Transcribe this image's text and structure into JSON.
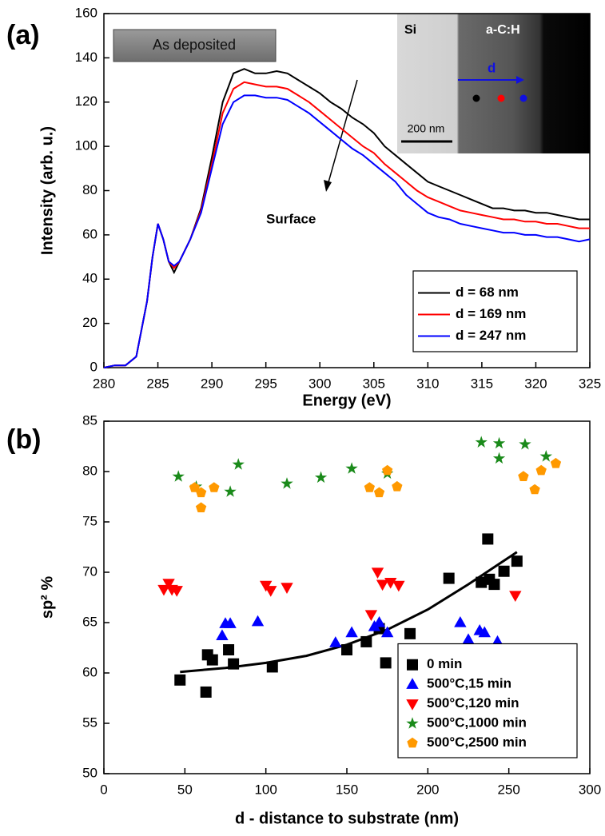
{
  "chart_data": [
    {
      "type": "line",
      "x_label": "Energy (eV)",
      "y_label": "Intensity (arb. u.)",
      "xlim": [
        280,
        325
      ],
      "ylim": [
        0,
        160
      ],
      "xticks": [
        280,
        285,
        290,
        295,
        300,
        305,
        310,
        315,
        320,
        325
      ],
      "yticks": [
        0,
        20,
        40,
        60,
        80,
        100,
        120,
        140,
        160
      ],
      "legend": "lower right",
      "annotations": {
        "panel": "(a)",
        "box": "As deposited",
        "arrow": "Surface",
        "inset": {
          "left": "Si",
          "right": "a-C:H",
          "arrow": "d",
          "scale": "200 nm"
        }
      },
      "x": [
        280,
        281,
        282,
        283,
        284,
        284.5,
        285,
        285.5,
        286,
        286.5,
        287,
        288,
        289,
        290,
        291,
        292,
        293,
        294,
        295,
        296,
        297,
        298,
        299,
        300,
        301,
        302,
        303,
        304,
        305,
        306,
        307,
        308,
        309,
        310,
        311,
        312,
        313,
        314,
        315,
        316,
        317,
        318,
        319,
        320,
        321,
        322,
        323,
        324,
        325
      ],
      "series": [
        {
          "name": "d = 68 nm",
          "color": "#000000",
          "values": [
            0,
            1,
            1,
            5,
            30,
            50,
            65,
            58,
            48,
            43,
            48,
            58,
            72,
            95,
            120,
            133,
            135,
            133,
            133,
            134,
            133,
            130,
            127,
            124,
            120,
            117,
            113,
            110,
            106,
            100,
            96,
            92,
            88,
            84,
            82,
            80,
            78,
            76,
            74,
            72,
            72,
            71,
            71,
            70,
            70,
            69,
            68,
            67,
            67
          ]
        },
        {
          "name": "d = 169 nm",
          "color": "#ff0000",
          "values": [
            0,
            1,
            1,
            5,
            30,
            50,
            65,
            58,
            48,
            45,
            48,
            58,
            71,
            92,
            115,
            126,
            129,
            128,
            127,
            127,
            126,
            123,
            120,
            116,
            112,
            108,
            104,
            100,
            97,
            92,
            88,
            84,
            80,
            77,
            75,
            73,
            71,
            70,
            69,
            68,
            67,
            67,
            66,
            66,
            65,
            65,
            64,
            63,
            63
          ]
        },
        {
          "name": "d = 247 nm",
          "color": "#0000ff",
          "values": [
            0,
            1,
            1,
            5,
            30,
            50,
            65,
            58,
            48,
            46,
            48,
            58,
            70,
            90,
            110,
            120,
            123,
            123,
            122,
            122,
            121,
            118,
            115,
            111,
            107,
            103,
            99,
            96,
            92,
            88,
            84,
            78,
            74,
            70,
            68,
            67,
            65,
            64,
            63,
            62,
            61,
            61,
            60,
            60,
            59,
            59,
            58,
            57,
            58
          ]
        }
      ]
    },
    {
      "type": "scatter",
      "x_label": "d - distance to substrate  (nm)",
      "y_label": "sp² %",
      "xlim": [
        0,
        300
      ],
      "ylim": [
        50,
        85
      ],
      "xticks": [
        0,
        50,
        100,
        150,
        200,
        250,
        300
      ],
      "yticks": [
        50,
        55,
        60,
        65,
        70,
        75,
        80,
        85
      ],
      "legend": "lower right",
      "annotations": {
        "panel": "(b)"
      },
      "series": [
        {
          "name": "0 min",
          "color": "#000000",
          "marker": "square",
          "x": [
            47,
            63,
            64,
            67,
            77,
            80,
            104,
            150,
            162,
            170,
            174,
            189,
            213,
            233,
            237,
            238,
            241,
            247,
            255
          ],
          "values": [
            59.3,
            58.1,
            61.8,
            61.3,
            62.3,
            60.9,
            60.6,
            62.3,
            63.1,
            64.4,
            61,
            63.9,
            69.4,
            69,
            73.3,
            69.3,
            68.8,
            70.1,
            71.1
          ]
        },
        {
          "name": "500°C,15 min",
          "color": "#0000ff",
          "marker": "triangle-up",
          "x": [
            73,
            75,
            78,
            95,
            143,
            153,
            167,
            170,
            175,
            220,
            225,
            232,
            235,
            243
          ],
          "values": [
            63.7,
            64.9,
            64.9,
            65.1,
            63,
            64,
            64.6,
            65,
            64,
            65,
            63.3,
            64.2,
            64,
            63.1
          ]
        },
        {
          "name": "500°C,120 min",
          "color": "#ff0000",
          "marker": "triangle-down",
          "x": [
            37,
            40,
            42,
            45,
            100,
            103,
            113,
            165,
            169,
            172,
            177,
            182,
            254
          ],
          "values": [
            68.3,
            68.9,
            68.3,
            68.2,
            68.7,
            68.2,
            68.5,
            65.8,
            70,
            68.8,
            69,
            68.7,
            67.7
          ]
        },
        {
          "name": "500°C,1000 min",
          "color": "#1a8a1a",
          "marker": "star",
          "x": [
            46,
            57,
            78,
            83,
            113,
            134,
            153,
            175,
            233,
            244,
            244,
            260,
            273
          ],
          "values": [
            79.5,
            78.5,
            78,
            80.7,
            78.8,
            79.4,
            80.3,
            79.8,
            82.9,
            82.8,
            81.3,
            82.7,
            81.5
          ]
        },
        {
          "name": "500°C,2500 min",
          "color": "#ff9900",
          "marker": "pentagon",
          "x": [
            56,
            60,
            60,
            68,
            164,
            170,
            175,
            181,
            259,
            266,
            270,
            279
          ],
          "values": [
            78.4,
            76.4,
            77.9,
            78.4,
            78.4,
            77.9,
            80.1,
            78.5,
            79.5,
            78.2,
            80.1,
            80.8
          ]
        }
      ],
      "fit": {
        "color": "#000000",
        "x": [
          47,
          75,
          100,
          125,
          150,
          175,
          200,
          225,
          255
        ],
        "values": [
          60.1,
          60.5,
          61,
          61.7,
          62.8,
          64.3,
          66.3,
          68.8,
          72
        ]
      }
    }
  ]
}
